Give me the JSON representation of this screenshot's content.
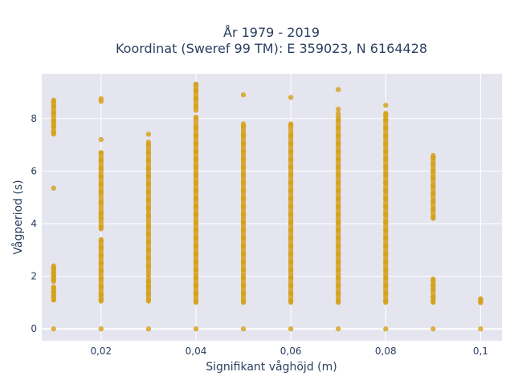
{
  "chart_data": {
    "type": "scatter",
    "title_line1": "År 1979 - 2019",
    "title_line2": "Koordinat (Sweref 99 TM): E 359023, N 6164428",
    "xlabel": "Signifikant våghöjd (m)",
    "ylabel": "Vågperiod (s)",
    "xlim": [
      0.0075,
      0.1045
    ],
    "ylim": [
      -0.45,
      9.7
    ],
    "x_ticks": [
      {
        "value": 0.02,
        "label": "0,02"
      },
      {
        "value": 0.04,
        "label": "0,04"
      },
      {
        "value": 0.06,
        "label": "0,06"
      },
      {
        "value": 0.08,
        "label": "0,08"
      },
      {
        "value": 0.1,
        "label": "0,1"
      }
    ],
    "y_ticks": [
      {
        "value": 0,
        "label": "0"
      },
      {
        "value": 2,
        "label": "2"
      },
      {
        "value": 4,
        "label": "4"
      },
      {
        "value": 6,
        "label": "6"
      },
      {
        "value": 8,
        "label": "8"
      }
    ],
    "grid": true,
    "legend": "none",
    "colors": {
      "marker": "#d4a017",
      "plot_bg": "#e5e5f0",
      "grid": "#ffffff"
    },
    "series": [
      {
        "points": [
          {
            "x": 0.01,
            "y": 0
          },
          {
            "x": 0.01,
            "y": 1.1
          },
          {
            "x": 0.01,
            "y": 1.25
          },
          {
            "x": 0.01,
            "y": 1.4
          },
          {
            "x": 0.01,
            "y": 1.55
          },
          {
            "x": 0.01,
            "y": 1.85
          },
          {
            "x": 0.01,
            "y": 2.0
          },
          {
            "x": 0.01,
            "y": 2.15
          },
          {
            "x": 0.01,
            "y": 2.3
          },
          {
            "x": 0.01,
            "y": 5.35
          },
          {
            "x": 0.01,
            "y": 7.45
          },
          {
            "x": 0.01,
            "y": 7.7
          },
          {
            "x": 0.01,
            "y": 7.9
          },
          {
            "x": 0.01,
            "y": 8.2
          },
          {
            "x": 0.01,
            "y": 8.45
          },
          {
            "x": 0.01,
            "y": 8.65
          },
          {
            "x": 0.02,
            "y": 0
          },
          {
            "x": 0.02,
            "y": 1.1
          },
          {
            "x": 0.02,
            "y": 1.3
          },
          {
            "x": 0.02,
            "y": 1.6
          },
          {
            "x": 0.02,
            "y": 1.9
          },
          {
            "x": 0.02,
            "y": 2.2
          },
          {
            "x": 0.02,
            "y": 2.5
          },
          {
            "x": 0.02,
            "y": 2.8
          },
          {
            "x": 0.02,
            "y": 3.1
          },
          {
            "x": 0.02,
            "y": 3.35
          },
          {
            "x": 0.02,
            "y": 3.85
          },
          {
            "x": 0.02,
            "y": 4.2
          },
          {
            "x": 0.02,
            "y": 4.4
          },
          {
            "x": 0.02,
            "y": 4.8
          },
          {
            "x": 0.02,
            "y": 5.2
          },
          {
            "x": 0.02,
            "y": 5.5
          },
          {
            "x": 0.02,
            "y": 5.8
          },
          {
            "x": 0.02,
            "y": 6.1
          },
          {
            "x": 0.02,
            "y": 6.4
          },
          {
            "x": 0.02,
            "y": 6.7
          },
          {
            "x": 0.02,
            "y": 7.2
          },
          {
            "x": 0.02,
            "y": 8.65
          },
          {
            "x": 0.02,
            "y": 8.75
          },
          {
            "x": 0.03,
            "y": 0
          },
          {
            "x": 0.03,
            "y": 1.1
          },
          {
            "x": 0.03,
            "y": 1.35
          },
          {
            "x": 0.03,
            "y": 1.6
          },
          {
            "x": 0.03,
            "y": 1.8
          },
          {
            "x": 0.03,
            "y": 2.1
          },
          {
            "x": 0.03,
            "y": 2.4
          },
          {
            "x": 0.03,
            "y": 2.7
          },
          {
            "x": 0.03,
            "y": 3.0
          },
          {
            "x": 0.03,
            "y": 3.3
          },
          {
            "x": 0.03,
            "y": 3.6
          },
          {
            "x": 0.03,
            "y": 3.9
          },
          {
            "x": 0.03,
            "y": 4.3
          },
          {
            "x": 0.03,
            "y": 4.6
          },
          {
            "x": 0.03,
            "y": 4.9
          },
          {
            "x": 0.03,
            "y": 5.2
          },
          {
            "x": 0.03,
            "y": 5.5
          },
          {
            "x": 0.03,
            "y": 5.8
          },
          {
            "x": 0.03,
            "y": 6.1
          },
          {
            "x": 0.03,
            "y": 6.4
          },
          {
            "x": 0.03,
            "y": 6.7
          },
          {
            "x": 0.03,
            "y": 7.0
          },
          {
            "x": 0.03,
            "y": 7.4
          },
          {
            "x": 0.04,
            "y": 0
          },
          {
            "x": 0.04,
            "y": 1.05
          },
          {
            "x": 0.04,
            "y": 1.35
          },
          {
            "x": 0.04,
            "y": 1.65
          },
          {
            "x": 0.04,
            "y": 1.95
          },
          {
            "x": 0.04,
            "y": 2.25
          },
          {
            "x": 0.04,
            "y": 2.55
          },
          {
            "x": 0.04,
            "y": 2.85
          },
          {
            "x": 0.04,
            "y": 3.15
          },
          {
            "x": 0.04,
            "y": 3.45
          },
          {
            "x": 0.04,
            "y": 3.75
          },
          {
            "x": 0.04,
            "y": 4.05
          },
          {
            "x": 0.04,
            "y": 4.35
          },
          {
            "x": 0.04,
            "y": 4.65
          },
          {
            "x": 0.04,
            "y": 4.95
          },
          {
            "x": 0.04,
            "y": 5.25
          },
          {
            "x": 0.04,
            "y": 5.55
          },
          {
            "x": 0.04,
            "y": 5.85
          },
          {
            "x": 0.04,
            "y": 6.15
          },
          {
            "x": 0.04,
            "y": 6.45
          },
          {
            "x": 0.04,
            "y": 6.75
          },
          {
            "x": 0.04,
            "y": 7.05
          },
          {
            "x": 0.04,
            "y": 7.35
          },
          {
            "x": 0.04,
            "y": 7.65
          },
          {
            "x": 0.04,
            "y": 8.05
          },
          {
            "x": 0.04,
            "y": 8.45
          },
          {
            "x": 0.04,
            "y": 8.75
          },
          {
            "x": 0.04,
            "y": 9.05
          },
          {
            "x": 0.04,
            "y": 9.3
          },
          {
            "x": 0.05,
            "y": 0
          },
          {
            "x": 0.05,
            "y": 1.05
          },
          {
            "x": 0.05,
            "y": 1.35
          },
          {
            "x": 0.05,
            "y": 1.65
          },
          {
            "x": 0.05,
            "y": 1.95
          },
          {
            "x": 0.05,
            "y": 2.25
          },
          {
            "x": 0.05,
            "y": 2.55
          },
          {
            "x": 0.05,
            "y": 2.85
          },
          {
            "x": 0.05,
            "y": 3.15
          },
          {
            "x": 0.05,
            "y": 3.45
          },
          {
            "x": 0.05,
            "y": 3.75
          },
          {
            "x": 0.05,
            "y": 4.05
          },
          {
            "x": 0.05,
            "y": 4.35
          },
          {
            "x": 0.05,
            "y": 4.65
          },
          {
            "x": 0.05,
            "y": 4.95
          },
          {
            "x": 0.05,
            "y": 5.25
          },
          {
            "x": 0.05,
            "y": 5.55
          },
          {
            "x": 0.05,
            "y": 5.85
          },
          {
            "x": 0.05,
            "y": 6.15
          },
          {
            "x": 0.05,
            "y": 6.45
          },
          {
            "x": 0.05,
            "y": 6.75
          },
          {
            "x": 0.05,
            "y": 7.05
          },
          {
            "x": 0.05,
            "y": 7.35
          },
          {
            "x": 0.05,
            "y": 7.7
          },
          {
            "x": 0.05,
            "y": 8.9
          },
          {
            "x": 0.06,
            "y": 0
          },
          {
            "x": 0.06,
            "y": 1.05
          },
          {
            "x": 0.06,
            "y": 1.35
          },
          {
            "x": 0.06,
            "y": 1.65
          },
          {
            "x": 0.06,
            "y": 1.95
          },
          {
            "x": 0.06,
            "y": 2.25
          },
          {
            "x": 0.06,
            "y": 2.55
          },
          {
            "x": 0.06,
            "y": 2.85
          },
          {
            "x": 0.06,
            "y": 3.15
          },
          {
            "x": 0.06,
            "y": 3.45
          },
          {
            "x": 0.06,
            "y": 3.75
          },
          {
            "x": 0.06,
            "y": 4.05
          },
          {
            "x": 0.06,
            "y": 4.35
          },
          {
            "x": 0.06,
            "y": 4.65
          },
          {
            "x": 0.06,
            "y": 4.95
          },
          {
            "x": 0.06,
            "y": 5.25
          },
          {
            "x": 0.06,
            "y": 5.55
          },
          {
            "x": 0.06,
            "y": 5.85
          },
          {
            "x": 0.06,
            "y": 6.15
          },
          {
            "x": 0.06,
            "y": 6.45
          },
          {
            "x": 0.06,
            "y": 6.75
          },
          {
            "x": 0.06,
            "y": 7.05
          },
          {
            "x": 0.06,
            "y": 7.35
          },
          {
            "x": 0.06,
            "y": 7.75
          },
          {
            "x": 0.06,
            "y": 8.8
          },
          {
            "x": 0.07,
            "y": 0
          },
          {
            "x": 0.07,
            "y": 1.05
          },
          {
            "x": 0.07,
            "y": 1.35
          },
          {
            "x": 0.07,
            "y": 1.65
          },
          {
            "x": 0.07,
            "y": 1.95
          },
          {
            "x": 0.07,
            "y": 2.25
          },
          {
            "x": 0.07,
            "y": 2.55
          },
          {
            "x": 0.07,
            "y": 2.85
          },
          {
            "x": 0.07,
            "y": 3.15
          },
          {
            "x": 0.07,
            "y": 3.45
          },
          {
            "x": 0.07,
            "y": 3.75
          },
          {
            "x": 0.07,
            "y": 4.05
          },
          {
            "x": 0.07,
            "y": 4.35
          },
          {
            "x": 0.07,
            "y": 4.65
          },
          {
            "x": 0.07,
            "y": 4.95
          },
          {
            "x": 0.07,
            "y": 5.25
          },
          {
            "x": 0.07,
            "y": 5.55
          },
          {
            "x": 0.07,
            "y": 5.85
          },
          {
            "x": 0.07,
            "y": 6.15
          },
          {
            "x": 0.07,
            "y": 6.45
          },
          {
            "x": 0.07,
            "y": 6.75
          },
          {
            "x": 0.07,
            "y": 7.05
          },
          {
            "x": 0.07,
            "y": 7.35
          },
          {
            "x": 0.07,
            "y": 7.65
          },
          {
            "x": 0.07,
            "y": 7.95
          },
          {
            "x": 0.07,
            "y": 8.35
          },
          {
            "x": 0.07,
            "y": 9.1
          },
          {
            "x": 0.08,
            "y": 0
          },
          {
            "x": 0.08,
            "y": 1.05
          },
          {
            "x": 0.08,
            "y": 1.35
          },
          {
            "x": 0.08,
            "y": 1.65
          },
          {
            "x": 0.08,
            "y": 1.95
          },
          {
            "x": 0.08,
            "y": 2.25
          },
          {
            "x": 0.08,
            "y": 2.55
          },
          {
            "x": 0.08,
            "y": 2.85
          },
          {
            "x": 0.08,
            "y": 3.15
          },
          {
            "x": 0.08,
            "y": 3.45
          },
          {
            "x": 0.08,
            "y": 3.75
          },
          {
            "x": 0.08,
            "y": 4.05
          },
          {
            "x": 0.08,
            "y": 4.35
          },
          {
            "x": 0.08,
            "y": 4.65
          },
          {
            "x": 0.08,
            "y": 4.95
          },
          {
            "x": 0.08,
            "y": 5.25
          },
          {
            "x": 0.08,
            "y": 5.55
          },
          {
            "x": 0.08,
            "y": 5.85
          },
          {
            "x": 0.08,
            "y": 6.15
          },
          {
            "x": 0.08,
            "y": 6.45
          },
          {
            "x": 0.08,
            "y": 6.75
          },
          {
            "x": 0.08,
            "y": 7.05
          },
          {
            "x": 0.08,
            "y": 7.35
          },
          {
            "x": 0.08,
            "y": 7.65
          },
          {
            "x": 0.08,
            "y": 7.95
          },
          {
            "x": 0.08,
            "y": 8.15
          },
          {
            "x": 0.08,
            "y": 8.5
          },
          {
            "x": 0.09,
            "y": 0
          },
          {
            "x": 0.09,
            "y": 1.05
          },
          {
            "x": 0.09,
            "y": 1.2
          },
          {
            "x": 0.09,
            "y": 1.5
          },
          {
            "x": 0.09,
            "y": 1.65
          },
          {
            "x": 0.09,
            "y": 1.85
          },
          {
            "x": 0.09,
            "y": 4.25
          },
          {
            "x": 0.09,
            "y": 4.55
          },
          {
            "x": 0.09,
            "y": 4.85
          },
          {
            "x": 0.09,
            "y": 5.15
          },
          {
            "x": 0.09,
            "y": 5.45
          },
          {
            "x": 0.09,
            "y": 5.75
          },
          {
            "x": 0.09,
            "y": 6.0
          },
          {
            "x": 0.09,
            "y": 6.25
          },
          {
            "x": 0.09,
            "y": 6.5
          },
          {
            "x": 0.1,
            "y": 0
          },
          {
            "x": 0.1,
            "y": 1.0
          },
          {
            "x": 0.1,
            "y": 1.1
          }
        ],
        "vertical_bands": [
          {
            "x": 0.01,
            "ranges": [
              [
                1.1,
                1.6
              ],
              [
                1.8,
                2.4
              ],
              [
                7.4,
                8.7
              ]
            ]
          },
          {
            "x": 0.02,
            "ranges": [
              [
                1.05,
                3.4
              ],
              [
                3.8,
                6.7
              ]
            ]
          },
          {
            "x": 0.03,
            "ranges": [
              [
                1.05,
                2.0
              ],
              [
                2.2,
                4.4
              ],
              [
                4.5,
                7.1
              ]
            ]
          },
          {
            "x": 0.04,
            "ranges": [
              [
                1.0,
                8.0
              ],
              [
                8.3,
                9.3
              ]
            ]
          },
          {
            "x": 0.05,
            "ranges": [
              [
                1.0,
                7.8
              ]
            ]
          },
          {
            "x": 0.06,
            "ranges": [
              [
                1.0,
                7.8
              ]
            ]
          },
          {
            "x": 0.07,
            "ranges": [
              [
                1.0,
                8.2
              ]
            ]
          },
          {
            "x": 0.08,
            "ranges": [
              [
                1.0,
                8.2
              ]
            ]
          },
          {
            "x": 0.09,
            "ranges": [
              [
                1.0,
                1.9
              ],
              [
                4.2,
                6.6
              ]
            ]
          },
          {
            "x": 0.1,
            "ranges": [
              [
                1.0,
                1.15
              ]
            ]
          }
        ]
      }
    ]
  }
}
